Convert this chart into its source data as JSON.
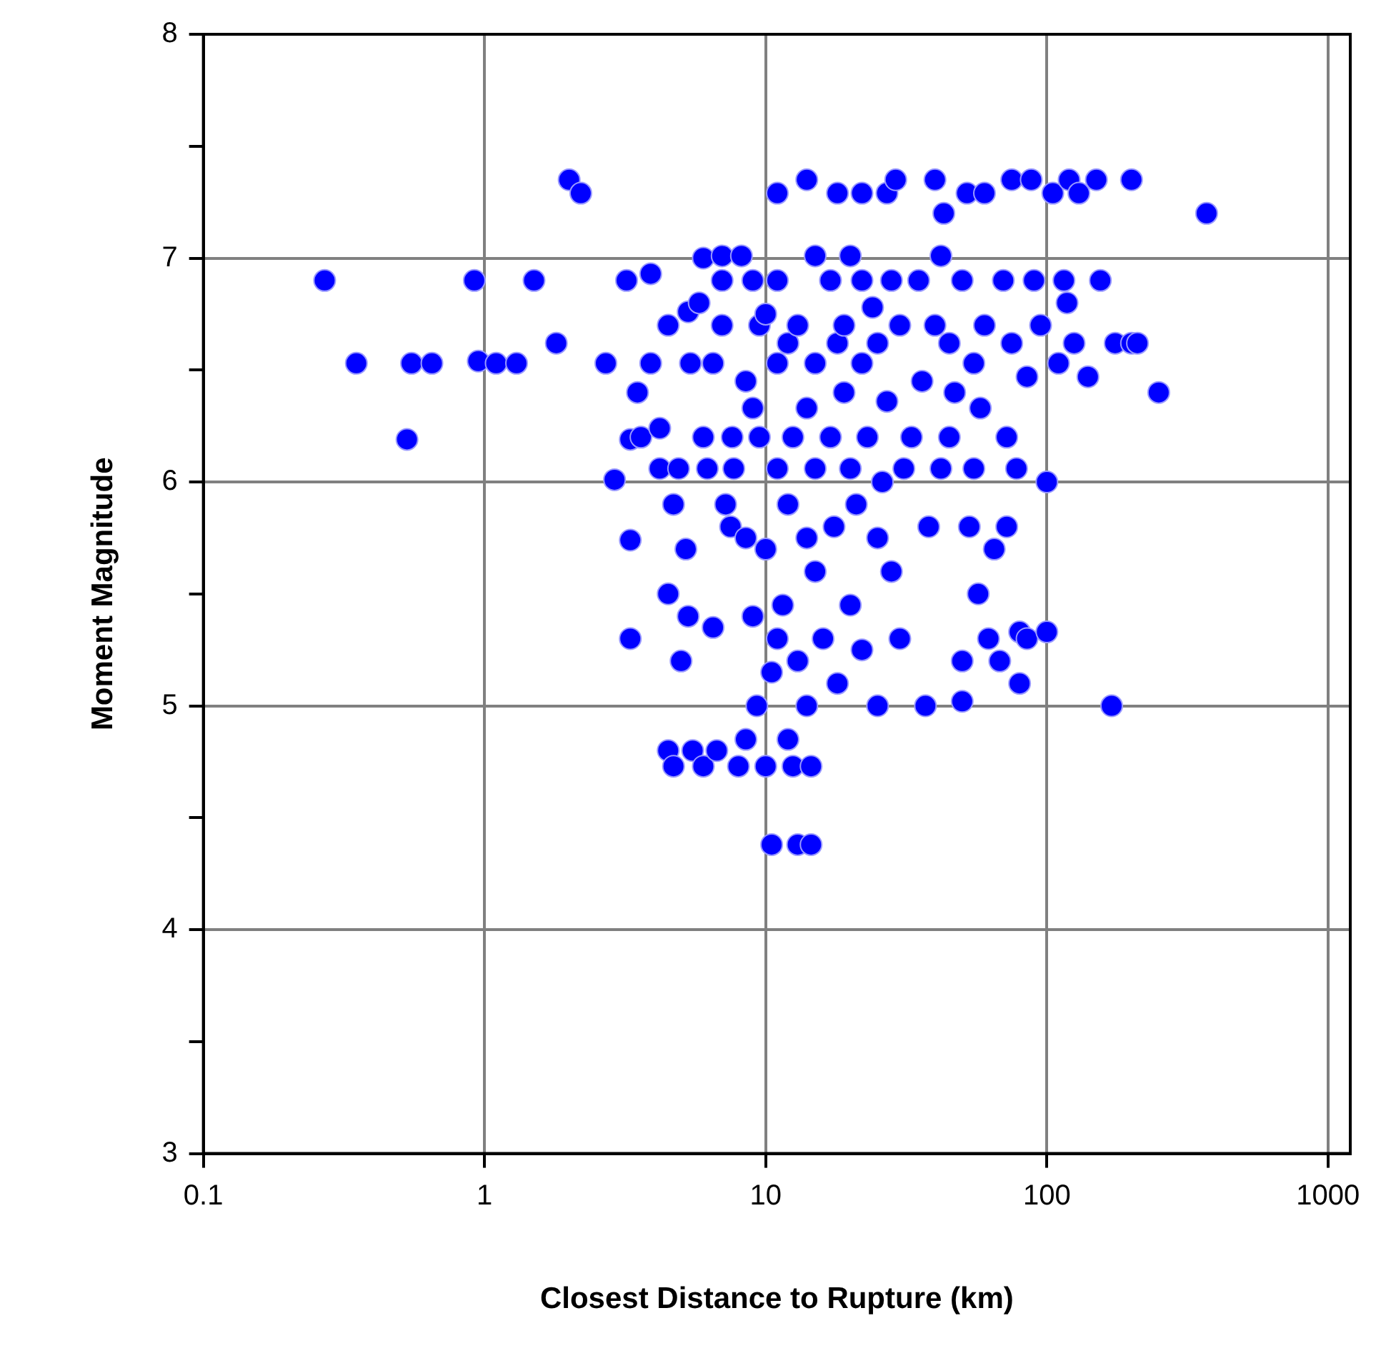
{
  "chart_data": {
    "type": "scatter",
    "xlabel": "Closest Distance to Rupture (km)",
    "ylabel": "Moment Magnitude",
    "log": "x",
    "grid": true,
    "legend": false,
    "marker": "circle",
    "xlim": [
      0.1,
      1200
    ],
    "xticks": [
      0.1,
      1,
      10,
      100,
      1000
    ],
    "ylim": [
      3,
      8
    ],
    "yticks": [
      3,
      {
        "value": 3.5,
        "label": null
      },
      4,
      {
        "value": 4.5,
        "label": null
      },
      5,
      {
        "value": 5.5,
        "label": null
      },
      6,
      {
        "value": 6.5,
        "label": null
      },
      7,
      {
        "value": 7.5,
        "label": null
      },
      8
    ],
    "series": [
      {
        "color": "#0000ff",
        "x": [
          0.27,
          0.35,
          0.53,
          0.55,
          0.65,
          0.92,
          0.95,
          1.1,
          1.3,
          1.5,
          1.8,
          2.0,
          2.2,
          2.7,
          2.9,
          3.2,
          3.3,
          3.3,
          3.3,
          3.5,
          3.6,
          3.9,
          3.9,
          4.2,
          4.2,
          4.5,
          4.5,
          4.5,
          4.7,
          4.7,
          4.9,
          5.0,
          5.2,
          5.3,
          5.3,
          5.4,
          5.5,
          5.8,
          6,
          6,
          6,
          6.2,
          6.5,
          6.5,
          6.7,
          7,
          7,
          7,
          7.2,
          7.5,
          7.6,
          7.7,
          8,
          8.2,
          8.5,
          8.5,
          8.5,
          9,
          9,
          9,
          9.3,
          9.5,
          9.5,
          10,
          10,
          10,
          10.5,
          10.5,
          11,
          11,
          11,
          11,
          11,
          11.5,
          12,
          12,
          12,
          12.5,
          12.5,
          13,
          13,
          13,
          14,
          14,
          14,
          14,
          14.5,
          14.5,
          15,
          15,
          15,
          15,
          16,
          17,
          17,
          17.5,
          18,
          18,
          18,
          19,
          19,
          20,
          20,
          20,
          21,
          22,
          22,
          22,
          22,
          23,
          24,
          25,
          25,
          25,
          26,
          27,
          27,
          28,
          28,
          29,
          30,
          30,
          31,
          33,
          35,
          36,
          37,
          38,
          40,
          40,
          42,
          42,
          43,
          45,
          45,
          47,
          50,
          50,
          50,
          52,
          53,
          55,
          55,
          57,
          58,
          60,
          60,
          62,
          65,
          68,
          70,
          72,
          72,
          75,
          75,
          78,
          80,
          80,
          85,
          85,
          88,
          90,
          95,
          100,
          100,
          105,
          110,
          115,
          118,
          120,
          125,
          130,
          140,
          150,
          155,
          170,
          175,
          200,
          200,
          210,
          250,
          370
        ],
        "values": [
          6.9,
          6.53,
          6.19,
          6.53,
          6.53,
          6.9,
          6.54,
          6.53,
          6.53,
          6.9,
          6.62,
          7.35,
          7.29,
          6.53,
          6.01,
          6.9,
          5.74,
          5.3,
          6.19,
          6.4,
          6.2,
          6.93,
          6.53,
          6.24,
          6.06,
          6.7,
          5.5,
          4.8,
          4.73,
          5.9,
          6.06,
          5.2,
          5.7,
          6.76,
          5.4,
          6.53,
          4.8,
          6.8,
          7.0,
          6.2,
          4.73,
          6.06,
          6.53,
          5.35,
          4.8,
          7.01,
          6.7,
          6.9,
          5.9,
          5.8,
          6.2,
          6.06,
          4.73,
          7.01,
          6.45,
          5.75,
          4.85,
          6.9,
          6.33,
          5.4,
          5.0,
          6.7,
          6.2,
          6.75,
          5.7,
          4.73,
          5.15,
          4.38,
          7.29,
          6.9,
          6.53,
          6.06,
          5.3,
          5.45,
          6.62,
          5.9,
          4.85,
          6.2,
          4.73,
          6.7,
          5.2,
          4.38,
          7.35,
          6.33,
          5.0,
          5.75,
          4.73,
          4.38,
          7.01,
          6.53,
          6.06,
          5.6,
          5.3,
          6.9,
          6.2,
          5.8,
          7.29,
          6.62,
          5.1,
          6.7,
          6.4,
          7.01,
          6.06,
          5.45,
          5.9,
          6.9,
          7.29,
          6.53,
          5.25,
          6.2,
          6.78,
          6.62,
          5.75,
          5.0,
          6.0,
          7.29,
          6.36,
          6.9,
          5.6,
          7.35,
          6.7,
          5.3,
          6.06,
          6.2,
          6.9,
          6.45,
          5.0,
          5.8,
          7.35,
          6.7,
          7.01,
          6.06,
          7.2,
          6.62,
          6.2,
          6.4,
          6.9,
          5.2,
          5.02,
          7.29,
          5.8,
          6.53,
          6.06,
          5.5,
          6.33,
          7.29,
          6.7,
          5.3,
          5.7,
          5.2,
          6.9,
          6.2,
          5.8,
          7.35,
          6.62,
          6.06,
          5.1,
          5.33,
          6.47,
          5.3,
          7.35,
          6.9,
          6.7,
          5.33,
          6.0,
          7.29,
          6.53,
          6.9,
          6.8,
          7.35,
          6.62,
          7.29,
          6.47,
          7.35,
          6.9,
          5.0,
          6.62,
          7.35,
          6.62,
          6.62,
          6.4,
          7.2
        ]
      }
    ]
  }
}
